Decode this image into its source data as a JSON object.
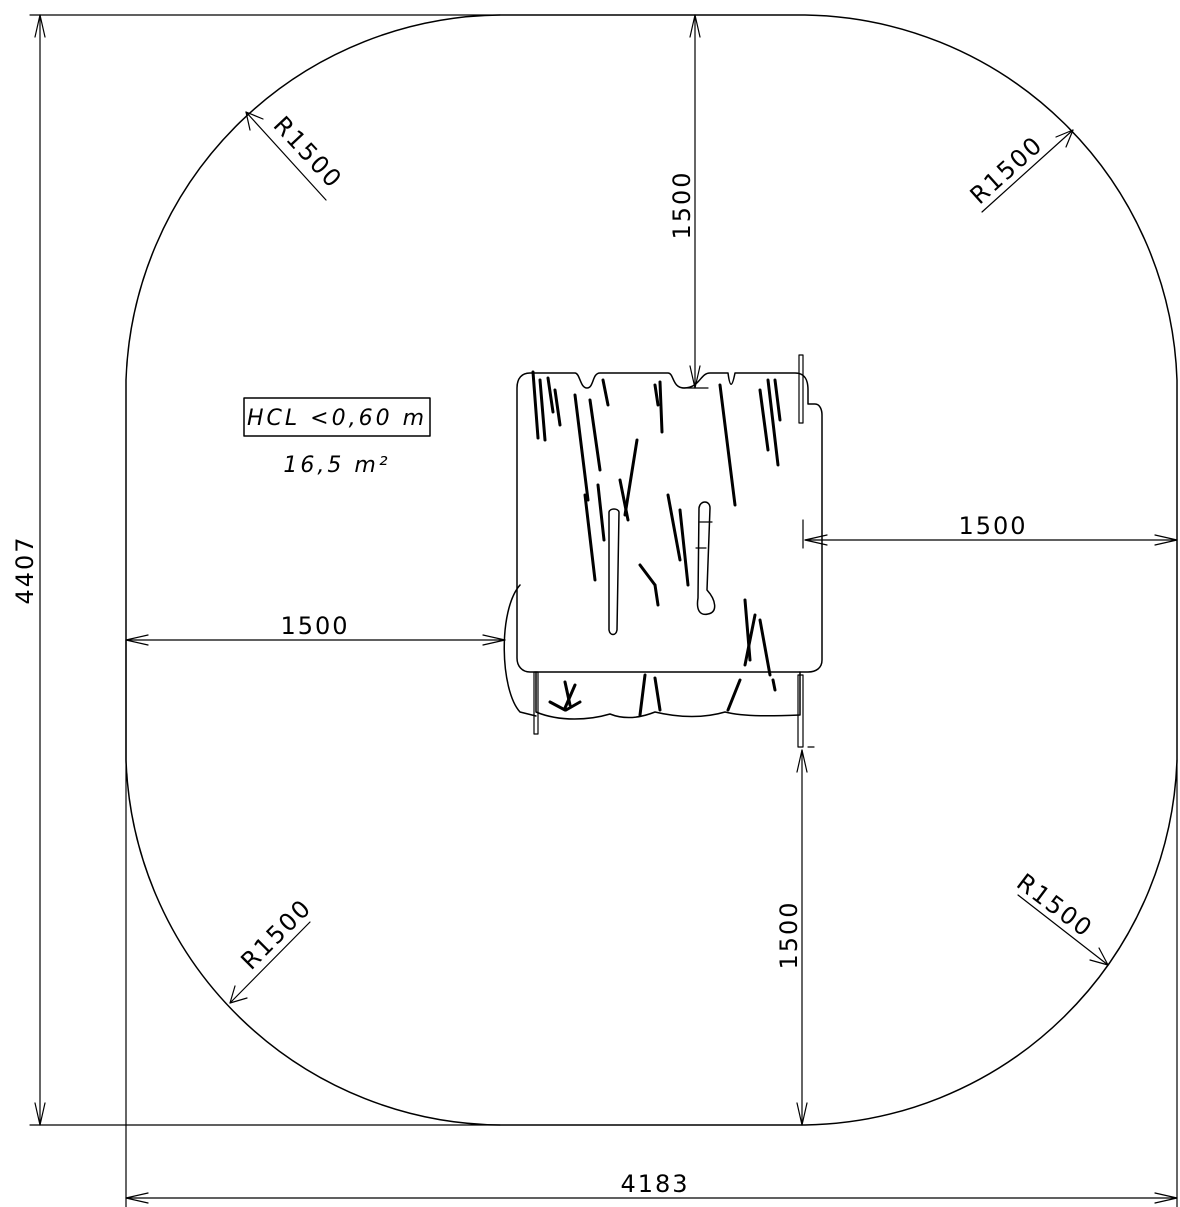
{
  "drawing": {
    "type": "playground safety zone plan",
    "note": {
      "hcl": "HCL <0,60 m",
      "area": "16,5 m²"
    },
    "dimensions": {
      "overall_height": "4407",
      "overall_width": "4183",
      "clearance_top": "1500",
      "clearance_right": "1500",
      "clearance_left": "1500",
      "clearance_bottom": "1500"
    },
    "radii": {
      "top_left": "R1500",
      "top_right": "R1500",
      "bottom_left": "R1500",
      "bottom_right": "R1500"
    }
  }
}
